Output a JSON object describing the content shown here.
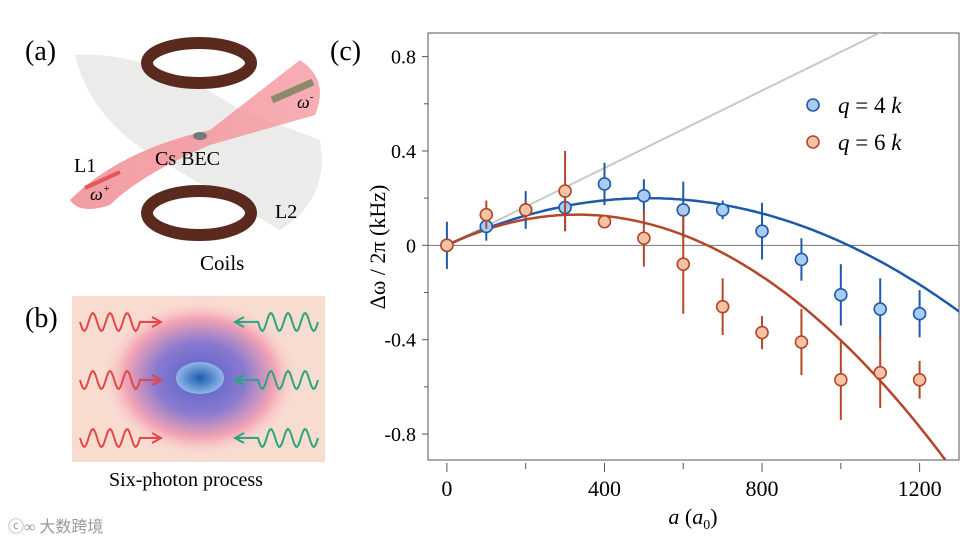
{
  "panels": {
    "a": {
      "label": "(a)",
      "texts": {
        "l1": "L1",
        "l2": "L2",
        "bec": "Cs BEC",
        "coils": "Coils",
        "omega_minus": "ω",
        "omega_minus_sup": "-",
        "omega_plus": "ω",
        "omega_plus_sup": "+"
      }
    },
    "b": {
      "label": "(b)",
      "caption": "Six-photon process"
    },
    "c": {
      "label": "(c)"
    }
  },
  "watermark": "大数跨境",
  "colors": {
    "blue": "#1f5aa8",
    "blue_fill": "#a9cdf0",
    "orange": "#b2472a",
    "orange_fill": "#f5c2a6",
    "gray": "#c8c8c8"
  },
  "chart_data": {
    "type": "scatter",
    "xlabel": "a (a0)",
    "xlabel_main": "a",
    "xlabel_paren_open": "(",
    "xlabel_var": "a",
    "xlabel_sub": "0",
    "xlabel_paren_close": ")",
    "ylabel": "Δω / 2π (kHz)",
    "xlim": [
      -48,
      1300
    ],
    "ylim": [
      -0.91,
      0.9
    ],
    "xticks": [
      0,
      400,
      800,
      1200
    ],
    "xtick_labels": [
      "0",
      "400",
      "800",
      "1200"
    ],
    "yticks": [
      -0.8,
      -0.4,
      0,
      0.4,
      0.8
    ],
    "ytick_labels": [
      "-0.8",
      "-0.4",
      "0",
      "0.4",
      "0.8"
    ],
    "legend_placement": "top-right",
    "series": [
      {
        "name": "q = 4 k",
        "legend_q": "q",
        "legend_eq": " = 4 ",
        "legend_k": "k",
        "color": "#1f5aa8",
        "fill": "#a9cdf0",
        "x": [
          0,
          100,
          200,
          300,
          400,
          500,
          600,
          700,
          800,
          900,
          1000,
          1100,
          1200
        ],
        "y": [
          0,
          0.08,
          0.15,
          0.16,
          0.26,
          0.21,
          0.15,
          0.15,
          0.06,
          -0.06,
          -0.21,
          -0.27,
          -0.29
        ],
        "err": [
          0.1,
          0.06,
          0.08,
          0.1,
          0.09,
          0.07,
          0.12,
          0.04,
          0.12,
          0.09,
          0.13,
          0.13,
          0.1
        ],
        "fit": {
          "type": "quadratic",
          "a1": 0.000784,
          "a2": -7.69e-07
        }
      },
      {
        "name": "q = 6 k",
        "legend_q": "q",
        "legend_eq": " = 6 ",
        "legend_k": "k",
        "color": "#b2472a",
        "fill": "#f5c2a6",
        "x": [
          0,
          100,
          200,
          300,
          400,
          500,
          600,
          700,
          800,
          900,
          1000,
          1100,
          1200
        ],
        "y": [
          0,
          0.13,
          0.15,
          0.23,
          0.1,
          0.03,
          -0.08,
          -0.26,
          -0.37,
          -0.41,
          -0.57,
          -0.54,
          -0.57
        ],
        "err": [
          0.02,
          0.06,
          0.04,
          0.17,
          0.02,
          0.12,
          0.21,
          0.12,
          0.07,
          0.14,
          0.17,
          0.15,
          0.08
        ],
        "fit": {
          "type": "quadratic",
          "a1": 0.000787,
          "a2": -1.19e-06
        }
      }
    ],
    "reference_line": {
      "type": "linear",
      "slope": 0.00082
    }
  }
}
